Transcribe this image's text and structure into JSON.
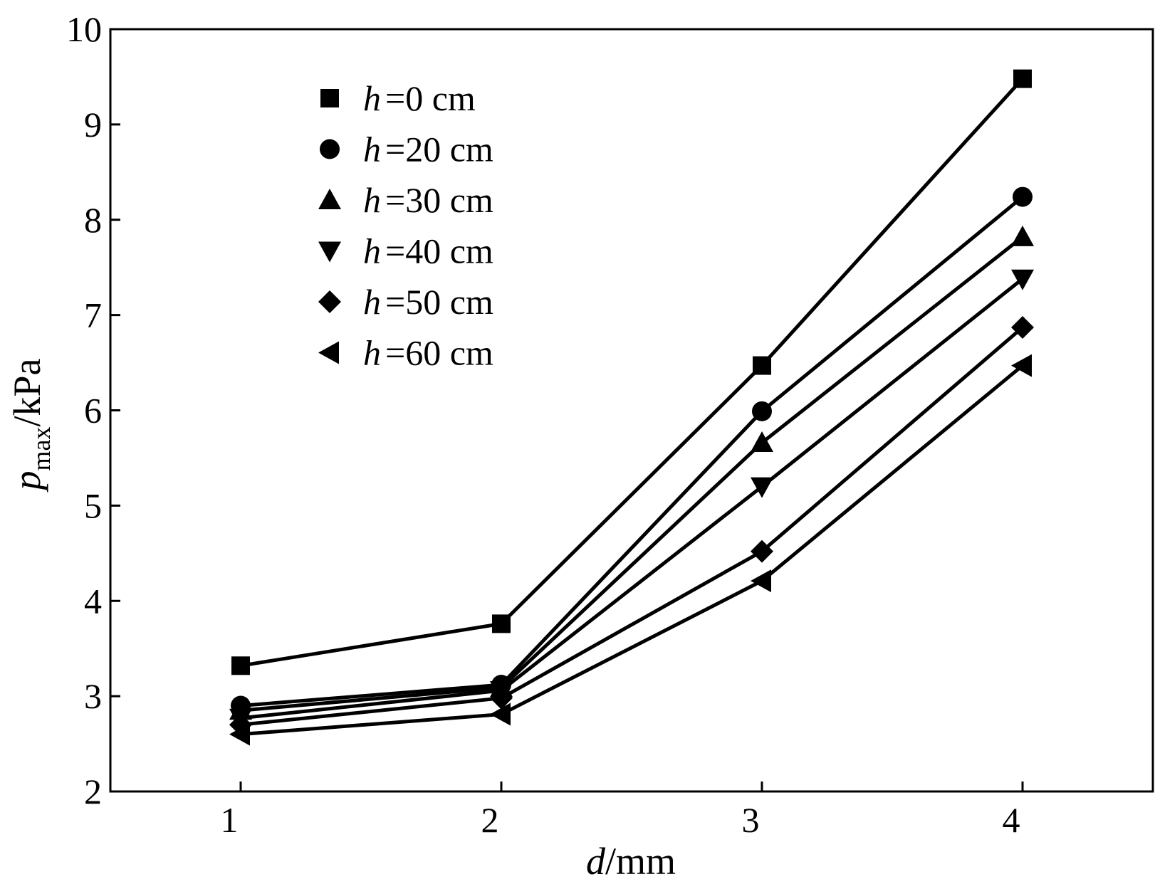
{
  "chart_data": {
    "type": "line",
    "title": "",
    "xlabel": {
      "symbol": "d",
      "unit": "/mm"
    },
    "ylabel": {
      "symbol": "p",
      "subscript": "max",
      "unit": "/kPa"
    },
    "xlim": [
      0.5,
      4.5
    ],
    "ylim": [
      2,
      10
    ],
    "x": [
      1,
      2,
      3,
      4
    ],
    "x_ticks": [
      "1",
      "2",
      "3",
      "4"
    ],
    "y_ticks": [
      "2",
      "3",
      "4",
      "5",
      "6",
      "7",
      "8",
      "9",
      "10"
    ],
    "grid": false,
    "legend_position": "top-left",
    "line_color": "#000000",
    "series": [
      {
        "name": "=0 cm",
        "legend_var": "h",
        "marker": "square",
        "values": [
          3.32,
          3.76,
          6.47,
          9.48
        ]
      },
      {
        "name": "=20 cm",
        "legend_var": "h",
        "marker": "circle",
        "values": [
          2.9,
          3.12,
          5.99,
          8.24
        ]
      },
      {
        "name": "=30 cm",
        "legend_var": "h",
        "marker": "triangle-up",
        "values": [
          2.85,
          3.09,
          5.66,
          7.82
        ]
      },
      {
        "name": "=40 cm",
        "legend_var": "h",
        "marker": "triangle-down",
        "values": [
          2.77,
          3.06,
          5.2,
          7.38
        ]
      },
      {
        "name": "=50 cm",
        "legend_var": "h",
        "marker": "diamond",
        "values": [
          2.7,
          2.98,
          4.52,
          6.87
        ]
      },
      {
        "name": "=60 cm",
        "legend_var": "h",
        "marker": "triangle-left",
        "values": [
          2.6,
          2.81,
          4.21,
          6.47
        ]
      }
    ]
  }
}
